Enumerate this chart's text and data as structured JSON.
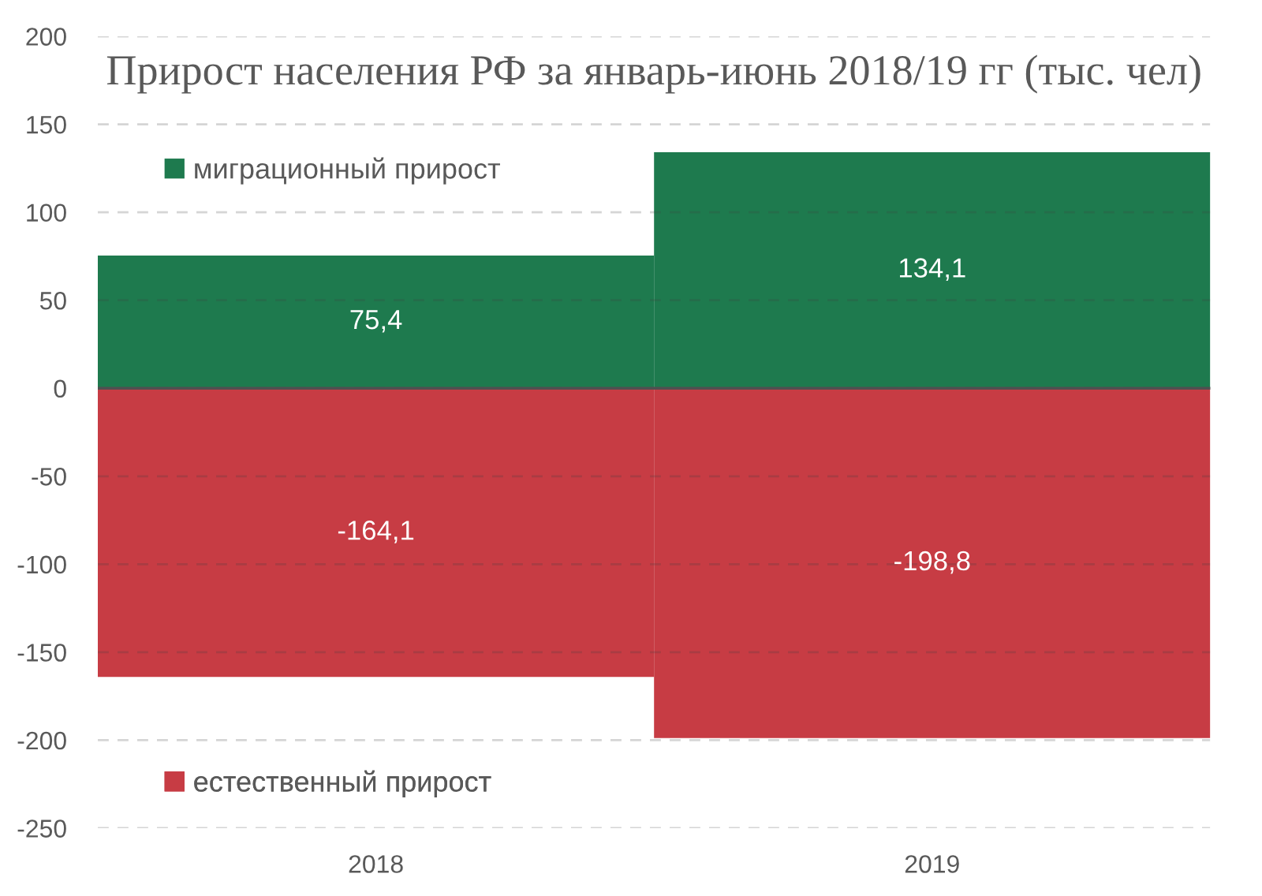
{
  "chart_data": {
    "type": "bar",
    "title": "Прирост населения РФ за январь-июнь 2018/19 гг (тыс. чел)",
    "categories": [
      "2018",
      "2019"
    ],
    "stacked": true,
    "series": [
      {
        "name": "миграционный прирост",
        "color": "#1e7a4e",
        "values": [
          75.4,
          134.1
        ],
        "value_labels": [
          "75,4",
          "134,1"
        ]
      },
      {
        "name": "естественный прирост",
        "color": "#c73c44",
        "values": [
          -164.1,
          -198.8
        ],
        "value_labels": [
          "-164,1",
          "-198,8"
        ]
      }
    ],
    "ylim": [
      -250,
      200
    ],
    "yticks": [
      -250,
      -200,
      -150,
      -100,
      -50,
      0,
      50,
      100,
      150,
      200
    ],
    "grid": "y",
    "legend": "left"
  }
}
